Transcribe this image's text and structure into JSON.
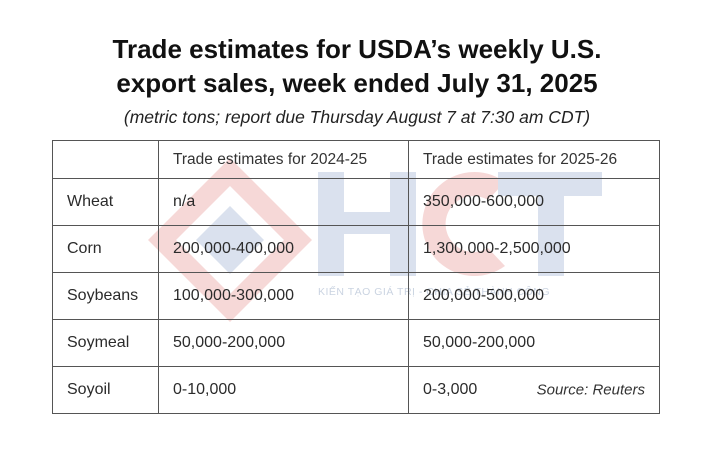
{
  "title_line1": "Trade estimates for USDA’s weekly U.S.",
  "title_line2": "export sales, week ended July 31, 2025",
  "subtitle": "(metric tons; report due Thursday August 7 at 7:30 am CDT)",
  "table": {
    "headers": [
      "",
      "Trade estimates for 2024-25",
      "Trade estimates for 2025-26"
    ],
    "rows": [
      {
        "commodity": "Wheat",
        "est_2024_25": "n/a",
        "est_2025_26": "350,000-600,000"
      },
      {
        "commodity": "Corn",
        "est_2024_25": "200,000-400,000",
        "est_2025_26": "1,300,000-2,500,000"
      },
      {
        "commodity": "Soybeans",
        "est_2024_25": "100,000-300,000",
        "est_2025_26": "200,000-500,000"
      },
      {
        "commodity": "Soymeal",
        "est_2024_25": "50,000-200,000",
        "est_2025_26": "50,000-200,000"
      },
      {
        "commodity": "Soyoil",
        "est_2024_25": "0-10,000",
        "est_2025_26": "0-3,000"
      }
    ]
  },
  "source": "Source: Reuters",
  "watermark": {
    "text": "HCT",
    "tagline": "KIẾN TẠO GIÁ TRỊ - CHIA SẺ THÀNH CÔNG",
    "colors": {
      "red": "#d9534f",
      "blue": "#5b7bb5"
    }
  }
}
